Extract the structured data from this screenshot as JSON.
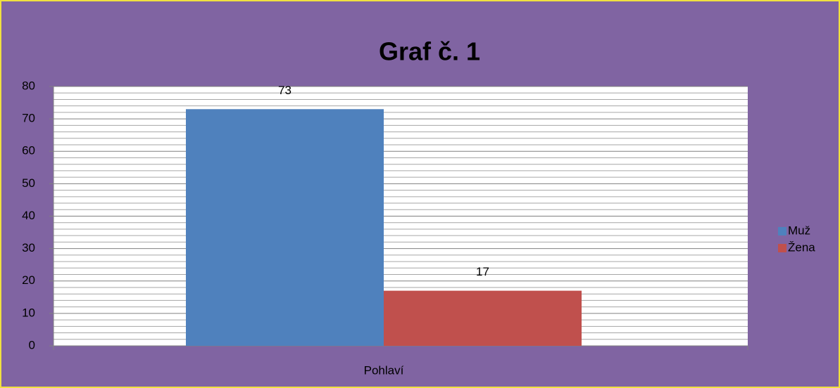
{
  "chart_data": {
    "type": "bar",
    "title": "Graf č. 1",
    "categories": [
      "Pohlaví"
    ],
    "series": [
      {
        "name": "Muž",
        "color": "#4f81bd",
        "values": [
          73
        ]
      },
      {
        "name": "Žena",
        "color": "#c0504d",
        "values": [
          17
        ]
      }
    ],
    "ylim": [
      0,
      80
    ],
    "yticks": [
      0,
      10,
      20,
      30,
      40,
      50,
      60,
      70,
      80
    ],
    "grid": true,
    "minor_grid": true,
    "legend": "right",
    "data_labels": true
  }
}
